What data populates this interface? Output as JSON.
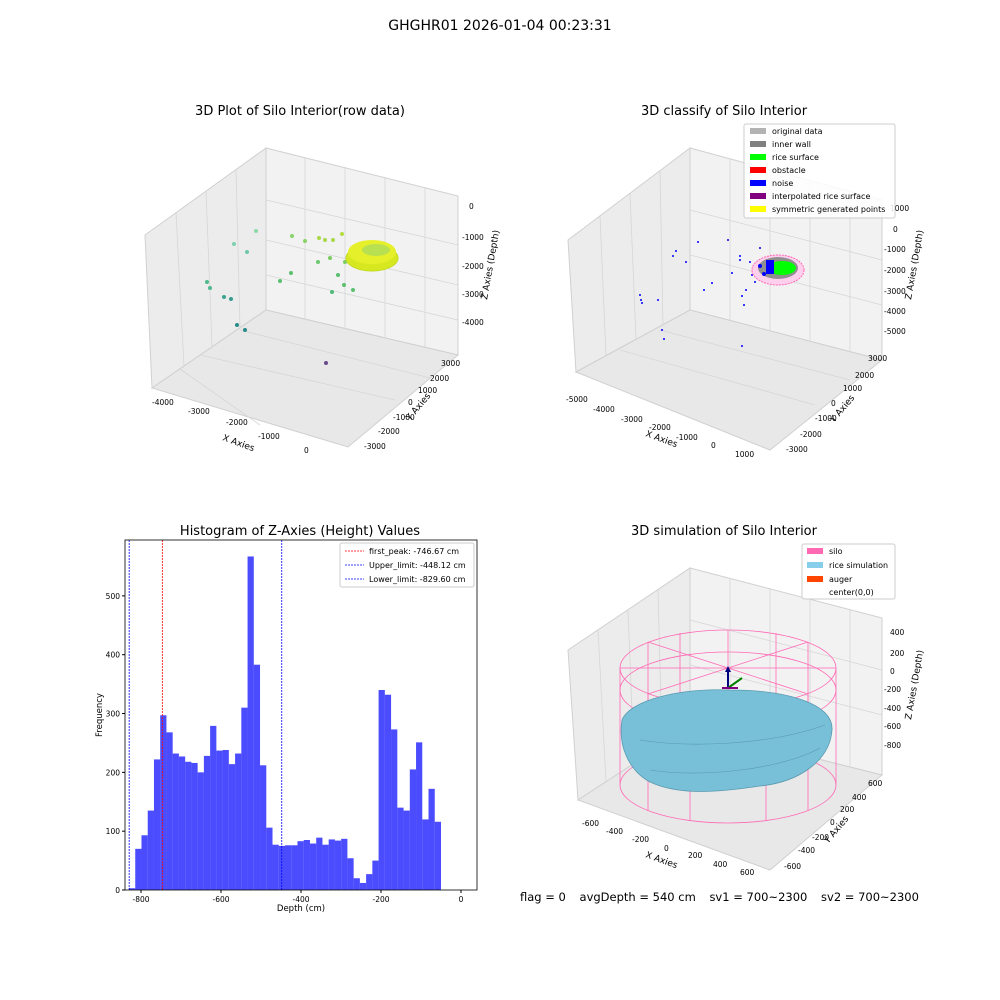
{
  "page": {
    "title": "GHGHR01 2026-01-04 00:23:31"
  },
  "panels": {
    "raw": {
      "title": "3D Plot of Silo Interior(row data)",
      "xlabel": "X Axies",
      "ylabel": "Y Axies",
      "zlabel": "Z Axies (Depth)",
      "xticks": [
        "-4000",
        "-3000",
        "-2000",
        "-1000",
        "0"
      ],
      "yticks": [
        "3000",
        "2000",
        "1000",
        "0",
        "-1000",
        "-2000",
        "-3000"
      ],
      "zticks": [
        "0",
        "-1000",
        "-2000",
        "-3000",
        "-4000"
      ]
    },
    "classify": {
      "title": "3D classify of Silo Interior",
      "xlabel": "X Axies",
      "ylabel": "Y Axies",
      "zlabel": "Z Axies (Depth)",
      "xticks": [
        "-5000",
        "-4000",
        "-3000",
        "-2000",
        "-1000",
        "0",
        "1000"
      ],
      "yticks": [
        "3000",
        "2000",
        "1000",
        "0",
        "-1000",
        "-2000",
        "-3000"
      ],
      "zticks": [
        "1000",
        "0",
        "-1000",
        "-2000",
        "-3000",
        "-4000",
        "-5000"
      ],
      "legend": [
        {
          "label": "original data",
          "color": "#b3b3b3"
        },
        {
          "label": "inner wall",
          "color": "#808080"
        },
        {
          "label": "rice surface",
          "color": "#00ff00"
        },
        {
          "label": "obstacle",
          "color": "#ff0000"
        },
        {
          "label": "noise",
          "color": "#0000ff"
        },
        {
          "label": "interpolated rice surface",
          "color": "#800080"
        },
        {
          "label": "symmetric generated points",
          "color": "#ffff00"
        }
      ]
    },
    "simulation": {
      "title": "3D simulation of Silo Interior",
      "xlabel": "X Axies",
      "ylabel": "Y Axies",
      "zlabel": "Z Axies (Depth)",
      "xticks": [
        "-600",
        "-400",
        "-200",
        "0",
        "200",
        "400",
        "600"
      ],
      "yticks": [
        "600",
        "400",
        "200",
        "0",
        "-200",
        "-400",
        "-600"
      ],
      "zticks": [
        "400",
        "200",
        "0",
        "-200",
        "-400",
        "-600",
        "-800"
      ],
      "legend": [
        {
          "label": "silo",
          "color": "#ff69b4"
        },
        {
          "label": "rice simulation",
          "color": "#87ceeb"
        },
        {
          "label": "auger",
          "color": "#ff4500"
        },
        {
          "label": "center(0,0)",
          "color": ""
        }
      ]
    }
  },
  "chart_data": {
    "type": "bar",
    "title": "Histogram of Z-Axies (Height) Values",
    "xlabel": "Depth (cm)",
    "ylabel": "Frequency",
    "xlim": [
      -840,
      40
    ],
    "ylim": [
      0,
      595
    ],
    "bar_color": "#0000ff",
    "bin_width": 15.6,
    "bin_start": -830,
    "values": [
      3,
      70,
      93,
      135,
      222,
      297,
      268,
      232,
      227,
      218,
      216,
      200,
      228,
      279,
      237,
      238,
      214,
      232,
      310,
      567,
      383,
      212,
      106,
      77,
      75,
      76,
      76,
      83,
      85,
      79,
      89,
      77,
      86,
      84,
      87,
      54,
      20,
      12,
      27,
      50,
      340,
      332,
      273,
      140,
      135,
      205,
      251,
      120,
      172,
      116
    ],
    "xticks": [
      -800,
      -600,
      -400,
      -200,
      0
    ],
    "yticks": [
      0,
      100,
      200,
      300,
      400,
      500
    ],
    "lines": [
      {
        "label": "first_peak: -746.67 cm",
        "x": -746.67,
        "color": "#ff0000"
      },
      {
        "label": "Upper_limit: -448.12 cm",
        "x": -448.12,
        "color": "#0000ff"
      },
      {
        "label": "Lower_limit: -829.60 cm",
        "x": -829.6,
        "color": "#0000ff"
      }
    ]
  },
  "footer": {
    "flag": "flag = 0",
    "avg": "avgDepth = 540 cm",
    "sv1": "sv1 = 700~2300",
    "sv2": "sv2 = 700~2300"
  }
}
